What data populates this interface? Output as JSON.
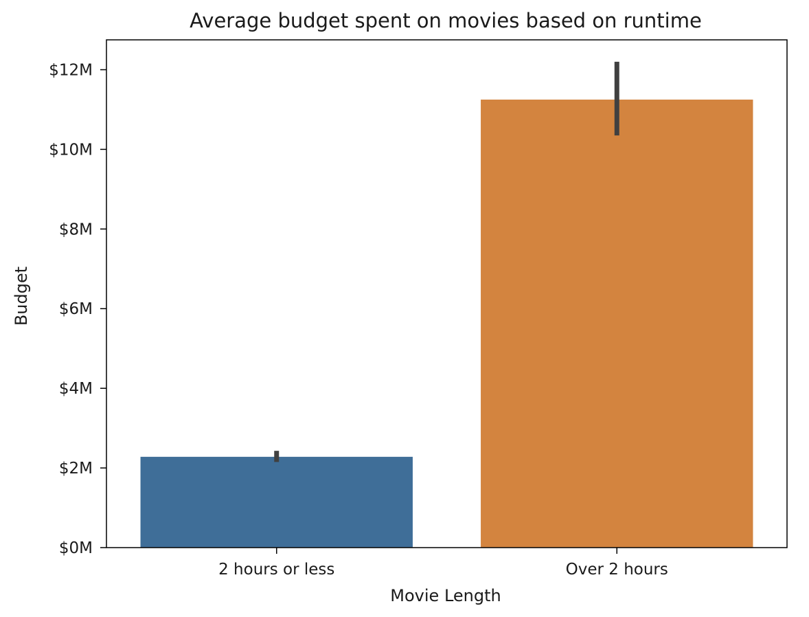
{
  "chart_data": {
    "type": "bar",
    "title": "Average budget spent on movies based on runtime",
    "xlabel": "Movie Length",
    "ylabel": "Budget",
    "categories": [
      "2 hours or less",
      "Over 2 hours"
    ],
    "values": [
      2.28,
      11.25
    ],
    "error_bars": [
      {
        "low": 2.15,
        "high": 2.43
      },
      {
        "low": 10.35,
        "high": 12.2
      }
    ],
    "value_unit": "millions of dollars",
    "ylim": [
      0,
      12.75
    ],
    "yticks": [
      0,
      2,
      4,
      6,
      8,
      10,
      12
    ],
    "ytick_labels": [
      "$0M",
      "$2M",
      "$4M",
      "$6M",
      "$8M",
      "$10M",
      "$12M"
    ],
    "colors": [
      "#3f6e98",
      "#d3843f"
    ],
    "errorbar_color": "#404040",
    "grid": false,
    "legend": "none"
  }
}
